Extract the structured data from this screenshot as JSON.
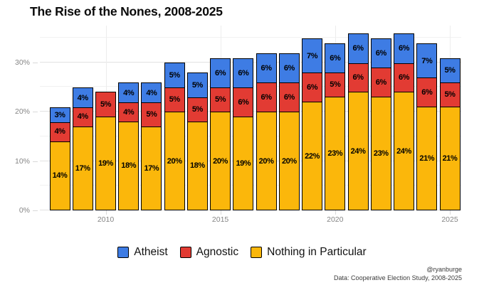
{
  "title": "The Rise of the Nones, 2008-2025",
  "footer": {
    "credit": "@ryanburge",
    "source": "Data: Cooperative Election Study, 2008-2025"
  },
  "colors": {
    "atheist_blue": "#3E7CE4",
    "agnostic_red": "#E23B33",
    "nothing_in_particular_gold": "#FBB70B",
    "bar_border": "#000000",
    "grid_major": "#e2e2e2",
    "grid_minor": "#f1f1f1",
    "axis_text": "#858585",
    "background": "#ffffff"
  },
  "chart_data": {
    "type": "bar",
    "stacked": true,
    "title": "The Rise of the Nones, 2008-2025",
    "categories": [
      "2008",
      "2009",
      "2010",
      "2011",
      "2012",
      "2013",
      "2014",
      "2015",
      "2016",
      "2017",
      "2018",
      "2019",
      "2020",
      "2021",
      "2022",
      "2023",
      "2024",
      "2025"
    ],
    "series": [
      {
        "name": "Atheist",
        "color": "#3E7CE4",
        "values": [
          3,
          4,
          0,
          4,
          4,
          5,
          5,
          6,
          6,
          6,
          6,
          7,
          6,
          6,
          6,
          6,
          7,
          5
        ]
      },
      {
        "name": "Agnostic",
        "color": "#E23B33",
        "values": [
          4,
          4,
          5,
          4,
          5,
          5,
          5,
          5,
          6,
          6,
          6,
          6,
          5,
          6,
          6,
          6,
          6,
          5
        ]
      },
      {
        "name": "Nothing in Particular",
        "color": "#FBB70B",
        "values": [
          14,
          17,
          19,
          18,
          17,
          20,
          18,
          20,
          19,
          20,
          20,
          22,
          23,
          24,
          23,
          24,
          21,
          21
        ]
      }
    ],
    "value_unit": "%",
    "data_label_format": "{value}%",
    "data_labels_visible": true,
    "x_tick_labels": [
      "2010",
      "2015",
      "2020",
      "2025"
    ],
    "y_tick_labels": [
      "0%",
      "10%",
      "20%",
      "30%"
    ],
    "y_major_ticks": [
      0,
      10,
      20,
      30
    ],
    "y_minor_ticks": [
      5,
      15,
      25,
      35
    ],
    "ylim": [
      0,
      37.4
    ],
    "grid": "horizontal major+minor light gray, faint vertical at labeled years",
    "legend_position": "bottom-center",
    "legend_order": [
      "Atheist",
      "Agnostic",
      "Nothing in Particular"
    ],
    "bar_outline": "black"
  }
}
